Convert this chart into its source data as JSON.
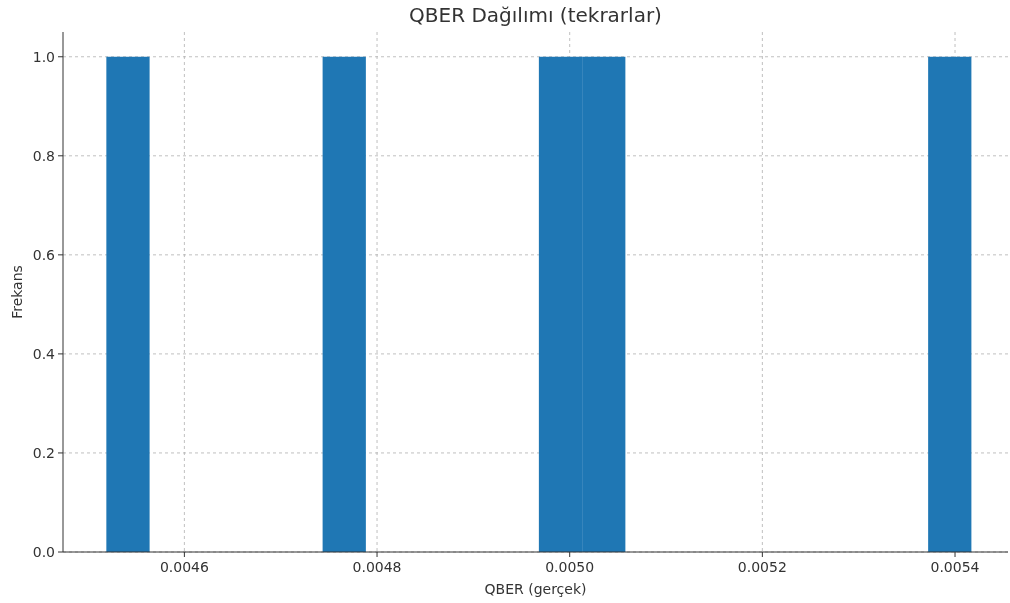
{
  "chart_data": {
    "type": "histogram",
    "title": "QBER Dağılımı (tekrarlar)",
    "xlabel": "QBER (gerçek)",
    "ylabel": "Frekans",
    "bins": [
      0.004519,
      0.0045639,
      0.0046088,
      0.0046537,
      0.0046986,
      0.0047435,
      0.0047884,
      0.0048333,
      0.0048782,
      0.0049231,
      0.004968,
      0.0050129,
      0.0050578,
      0.0051027,
      0.0051476,
      0.0051925,
      0.0052374,
      0.0052823,
      0.0053272,
      0.0053721,
      0.005417
    ],
    "values": [
      1,
      0,
      0,
      0,
      0,
      1,
      0,
      0,
      0,
      0,
      1,
      1,
      0,
      0,
      0,
      0,
      0,
      0,
      0,
      1
    ],
    "color": "#1f77b4",
    "xlim": [
      0.004474,
      0.005455
    ],
    "ylim": [
      0,
      1.05
    ],
    "xticks": [
      0.0046,
      0.0048,
      {
        "value": 0.005,
        "label": "0.0050"
      },
      0.0052,
      0.0054
    ],
    "yticks": [
      {
        "value": 0,
        "label": "0.0"
      },
      0.2,
      0.4,
      0.6,
      0.8,
      {
        "value": 1,
        "label": "1.0"
      }
    ],
    "grid": true
  }
}
